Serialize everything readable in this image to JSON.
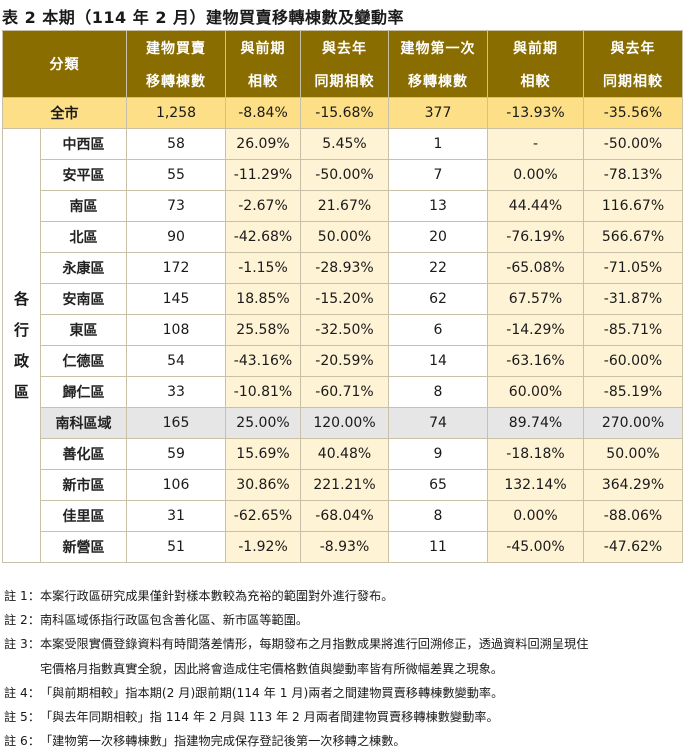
{
  "title": "表 2 本期（114 年 2 月）建物買賣移轉棟數及變動率",
  "headers": {
    "category": "分類",
    "col1": [
      "建物買賣",
      "移轉棟數"
    ],
    "col2": [
      "與前期",
      "相較"
    ],
    "col3": [
      "與去年",
      "同期相較"
    ],
    "col4": [
      "建物第一次",
      "移轉棟數"
    ],
    "col5": [
      "與前期",
      "相較"
    ],
    "col6": [
      "與去年",
      "同期相較"
    ]
  },
  "total": {
    "label": "全市",
    "values": [
      "1,258",
      "-8.84%",
      "-15.68%",
      "377",
      "-13.93%",
      "-35.56%"
    ]
  },
  "side_label": [
    "各",
    "行",
    "政",
    "區"
  ],
  "rows": [
    {
      "name": "中西區",
      "values": [
        "58",
        "26.09%",
        "5.45%",
        "1",
        "-",
        "-50.00%"
      ]
    },
    {
      "name": "安平區",
      "values": [
        "55",
        "-11.29%",
        "-50.00%",
        "7",
        "0.00%",
        "-78.13%"
      ]
    },
    {
      "name": "南區",
      "values": [
        "73",
        "-2.67%",
        "21.67%",
        "13",
        "44.44%",
        "116.67%"
      ]
    },
    {
      "name": "北區",
      "values": [
        "90",
        "-42.68%",
        "50.00%",
        "20",
        "-76.19%",
        "566.67%"
      ]
    },
    {
      "name": "永康區",
      "values": [
        "172",
        "-1.15%",
        "-28.93%",
        "22",
        "-65.08%",
        "-71.05%"
      ]
    },
    {
      "name": "安南區",
      "values": [
        "145",
        "18.85%",
        "-15.20%",
        "62",
        "67.57%",
        "-31.87%"
      ]
    },
    {
      "name": "東區",
      "values": [
        "108",
        "25.58%",
        "-32.50%",
        "6",
        "-14.29%",
        "-85.71%"
      ]
    },
    {
      "name": "仁德區",
      "values": [
        "54",
        "-43.16%",
        "-20.59%",
        "14",
        "-63.16%",
        "-60.00%"
      ]
    },
    {
      "name": "歸仁區",
      "values": [
        "33",
        "-10.81%",
        "-60.71%",
        "8",
        "60.00%",
        "-85.19%"
      ]
    },
    {
      "name": "南科區域",
      "values": [
        "165",
        "25.00%",
        "120.00%",
        "74",
        "89.74%",
        "270.00%"
      ]
    },
    {
      "name": "善化區",
      "values": [
        "59",
        "15.69%",
        "40.48%",
        "9",
        "-18.18%",
        "50.00%"
      ]
    },
    {
      "name": "新市區",
      "values": [
        "106",
        "30.86%",
        "221.21%",
        "65",
        "132.14%",
        "364.29%"
      ]
    },
    {
      "name": "佳里區",
      "values": [
        "31",
        "-62.65%",
        "-68.04%",
        "8",
        "0.00%",
        "-88.06%"
      ]
    },
    {
      "name": "新營區",
      "values": [
        "51",
        "-1.92%",
        "-8.93%",
        "11",
        "-45.00%",
        "-47.62%"
      ]
    }
  ],
  "notes": [
    {
      "tag": "註 1：",
      "text": "本案行政區研究成果僅針對樣本數較為充裕的範圍對外進行發布。"
    },
    {
      "tag": "註 2：",
      "text": "南科區域係指行政區包含善化區、新市區等範圍。"
    },
    {
      "tag": "註 3：",
      "text": "本案受限實價登錄資料有時間落差情形，每期發布之月指數成果將進行回溯修正，透過資料回溯呈現住",
      "cont": "宅價格月指數真實全貌，因此將會造成住宅價格數值與變動率皆有所微幅差異之現象。"
    },
    {
      "tag": "註 4：",
      "text": "「與前期相較」指本期(2 月)跟前期(114 年 1 月)兩者之間建物買賣移轉棟數變動率。"
    },
    {
      "tag": "註 5：",
      "text": "「與去年同期相較」指 114 年 2 月與 113 年 2 月兩者間建物買賣移轉棟數變動率。"
    },
    {
      "tag": "註 6：",
      "text": "「建物第一次移轉棟數」指建物完成保存登記後第一次移轉之棟數。"
    }
  ]
}
